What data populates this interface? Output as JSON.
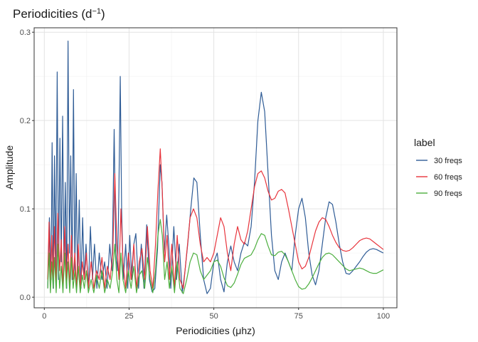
{
  "chart_data": {
    "type": "line",
    "title": "Periodicities (d",
    "title_superscript": "−1",
    "title_suffix": ")",
    "xlabel": "Periodicities (μhz)",
    "ylabel": "Amplitude",
    "xlim": [
      -3,
      104
    ],
    "ylim": [
      -0.012,
      0.305
    ],
    "x_ticks": [
      0,
      25,
      50,
      75,
      100
    ],
    "x_tick_labels": [
      "0",
      "25",
      "50",
      "75",
      "100"
    ],
    "y_ticks": [
      0.0,
      0.1,
      0.2,
      0.3
    ],
    "y_tick_labels": [
      "0.0",
      "0.1",
      "0.2",
      "0.3"
    ],
    "grid": true,
    "legend": {
      "title": "label",
      "placement": "right",
      "entries": [
        "30  freqs",
        "60  freqs",
        "90  freqs"
      ]
    },
    "series": [
      {
        "name": "30  freqs",
        "color": "#2f5c96",
        "x": [
          1.0,
          1.5,
          2.0,
          2.3,
          2.7,
          3.0,
          3.4,
          3.8,
          4.2,
          4.6,
          5.0,
          5.4,
          5.8,
          6.2,
          6.6,
          7.0,
          7.4,
          7.8,
          8.2,
          8.6,
          9.0,
          9.4,
          9.8,
          10.3,
          10.8,
          11.3,
          11.8,
          12.3,
          13.0,
          13.6,
          14.2,
          14.8,
          15.5,
          16.2,
          17.0,
          17.8,
          18.5,
          19.3,
          20.0,
          20.6,
          21.1,
          21.6,
          22.0,
          22.4,
          22.8,
          23.3,
          24.0,
          24.6,
          25.2,
          25.8,
          26.4,
          27.0,
          27.8,
          28.6,
          29.4,
          30.2,
          31.0,
          31.8,
          32.6,
          33.4,
          34.2,
          34.7,
          35.4,
          36.1,
          36.7,
          37.3,
          38.2,
          39.0,
          39.8,
          40.7,
          41.5,
          42.3,
          43.2,
          44.1,
          45.0,
          46.0,
          47.0,
          48.0,
          49.0,
          50.0,
          51.0,
          52.0,
          53.0,
          54.0,
          55.0,
          56.0,
          57.0,
          58.0,
          59.0,
          60.0,
          61.0,
          62.0,
          63.0,
          64.0,
          65.0,
          66.0,
          67.0,
          68.0,
          69.0,
          70.0,
          71.0,
          72.0,
          73.0,
          74.0,
          75.0,
          76.0,
          77.0,
          78.0,
          79.0,
          80.0,
          81.0,
          82.0,
          83.0,
          84.0,
          85.0,
          86.0,
          87.0,
          88.0,
          89.0,
          90.0,
          91.0,
          92.0,
          93.0,
          94.0,
          95.0,
          96.0,
          97.0,
          98.0,
          99.0,
          100.0
        ],
        "y": [
          0.01,
          0.09,
          0.02,
          0.175,
          0.01,
          0.16,
          0.03,
          0.255,
          0.02,
          0.18,
          0.04,
          0.205,
          0.03,
          0.13,
          0.01,
          0.29,
          0.05,
          0.16,
          0.02,
          0.235,
          0.03,
          0.14,
          0.02,
          0.11,
          0.01,
          0.09,
          0.02,
          0.06,
          0.01,
          0.08,
          0.02,
          0.06,
          0.01,
          0.05,
          0.02,
          0.04,
          0.01,
          0.06,
          0.03,
          0.19,
          0.05,
          0.03,
          0.12,
          0.25,
          0.1,
          0.02,
          0.06,
          0.01,
          0.07,
          0.02,
          0.06,
          0.072,
          0.01,
          0.06,
          0.01,
          0.082,
          0.02,
          0.006,
          0.01,
          0.055,
          0.15,
          0.13,
          0.05,
          0.093,
          0.06,
          0.01,
          0.08,
          0.02,
          0.06,
          0.005,
          0.03,
          0.06,
          0.1,
          0.135,
          0.13,
          0.07,
          0.02,
          0.004,
          0.01,
          0.04,
          0.05,
          0.02,
          0.006,
          0.04,
          0.058,
          0.04,
          0.03,
          0.05,
          0.062,
          0.058,
          0.08,
          0.13,
          0.2,
          0.232,
          0.21,
          0.14,
          0.07,
          0.03,
          0.02,
          0.04,
          0.05,
          0.04,
          0.03,
          0.07,
          0.1,
          0.112,
          0.09,
          0.05,
          0.025,
          0.014,
          0.03,
          0.06,
          0.09,
          0.108,
          0.105,
          0.085,
          0.06,
          0.04,
          0.027,
          0.026,
          0.03,
          0.035,
          0.04,
          0.046,
          0.051,
          0.054,
          0.055,
          0.054,
          0.052,
          0.05
        ]
      },
      {
        "name": "60  freqs",
        "color": "#e8343c",
        "x": [
          1.0,
          1.4,
          1.8,
          2.2,
          2.6,
          3.0,
          3.5,
          4.0,
          4.5,
          5.0,
          5.5,
          6.0,
          6.5,
          7.0,
          7.5,
          8.0,
          8.5,
          9.0,
          9.5,
          10.0,
          10.6,
          11.2,
          11.8,
          12.4,
          13.0,
          13.8,
          14.6,
          15.4,
          16.2,
          17.0,
          17.8,
          18.6,
          19.4,
          20.2,
          20.8,
          21.4,
          22.0,
          22.6,
          23.2,
          24.0,
          24.8,
          25.6,
          26.4,
          27.2,
          28.0,
          28.8,
          29.6,
          30.4,
          31.2,
          32.0,
          32.8,
          33.5,
          34.2,
          34.8,
          35.5,
          36.2,
          36.9,
          37.6,
          38.4,
          39.2,
          40.0,
          41.0,
          42.0,
          43.0,
          44.0,
          45.0,
          46.0,
          47.0,
          48.0,
          49.0,
          50.0,
          51.0,
          52.0,
          53.0,
          54.0,
          55.0,
          56.0,
          57.0,
          58.0,
          59.0,
          60.0,
          61.0,
          62.0,
          63.0,
          64.0,
          65.0,
          66.0,
          67.0,
          68.0,
          69.0,
          70.0,
          71.0,
          72.0,
          73.0,
          74.0,
          75.0,
          76.0,
          77.0,
          78.0,
          79.0,
          80.0,
          81.0,
          82.0,
          83.0,
          84.0,
          85.0,
          86.0,
          87.0,
          88.0,
          89.0,
          90.0,
          91.0,
          92.0,
          93.0,
          94.0,
          95.0,
          96.0,
          97.0,
          98.0,
          99.0,
          100.0
        ],
        "y": [
          0.02,
          0.085,
          0.01,
          0.07,
          0.02,
          0.08,
          0.01,
          0.095,
          0.03,
          0.065,
          0.01,
          0.08,
          0.02,
          0.06,
          0.01,
          0.07,
          0.02,
          0.05,
          0.01,
          0.06,
          0.01,
          0.04,
          0.02,
          0.05,
          0.01,
          0.04,
          0.01,
          0.03,
          0.02,
          0.045,
          0.01,
          0.035,
          0.02,
          0.05,
          0.14,
          0.06,
          0.02,
          0.1,
          0.04,
          0.01,
          0.05,
          0.02,
          0.06,
          0.01,
          0.04,
          0.055,
          0.02,
          0.08,
          0.03,
          0.01,
          0.06,
          0.12,
          0.168,
          0.12,
          0.04,
          0.07,
          0.02,
          0.06,
          0.01,
          0.07,
          0.02,
          0.01,
          0.05,
          0.09,
          0.1,
          0.09,
          0.06,
          0.04,
          0.045,
          0.04,
          0.05,
          0.07,
          0.09,
          0.08,
          0.05,
          0.03,
          0.06,
          0.08,
          0.065,
          0.06,
          0.075,
          0.1,
          0.125,
          0.14,
          0.143,
          0.135,
          0.12,
          0.11,
          0.112,
          0.12,
          0.122,
          0.118,
          0.1,
          0.08,
          0.06,
          0.04,
          0.032,
          0.035,
          0.045,
          0.06,
          0.075,
          0.085,
          0.09,
          0.088,
          0.08,
          0.07,
          0.062,
          0.056,
          0.053,
          0.052,
          0.053,
          0.056,
          0.06,
          0.064,
          0.066,
          0.067,
          0.066,
          0.063,
          0.06,
          0.057,
          0.054
        ]
      },
      {
        "name": "90  freqs",
        "color": "#4caf3e",
        "x": [
          1.0,
          1.4,
          1.8,
          2.2,
          2.6,
          3.0,
          3.5,
          4.0,
          4.5,
          5.0,
          5.5,
          6.0,
          6.5,
          7.0,
          7.5,
          8.0,
          8.5,
          9.0,
          9.5,
          10.0,
          10.6,
          11.2,
          11.8,
          12.4,
          13.0,
          13.8,
          14.6,
          15.4,
          16.2,
          17.0,
          17.8,
          18.6,
          19.4,
          20.2,
          20.8,
          21.4,
          22.0,
          22.6,
          23.2,
          24.0,
          24.8,
          25.6,
          26.4,
          27.2,
          28.0,
          28.8,
          29.6,
          30.4,
          31.2,
          32.0,
          32.8,
          33.5,
          34.2,
          34.8,
          35.5,
          36.2,
          36.9,
          37.6,
          38.4,
          39.2,
          40.0,
          41.0,
          42.0,
          43.0,
          44.0,
          45.0,
          46.0,
          47.0,
          48.0,
          49.0,
          50.0,
          51.0,
          52.0,
          53.0,
          54.0,
          55.0,
          56.0,
          57.0,
          58.0,
          59.0,
          60.0,
          61.0,
          62.0,
          63.0,
          64.0,
          65.0,
          66.0,
          67.0,
          68.0,
          69.0,
          70.0,
          71.0,
          72.0,
          73.0,
          74.0,
          75.0,
          76.0,
          77.0,
          78.0,
          79.0,
          80.0,
          81.0,
          82.0,
          83.0,
          84.0,
          85.0,
          86.0,
          87.0,
          88.0,
          89.0,
          90.0,
          91.0,
          92.0,
          93.0,
          94.0,
          95.0,
          96.0,
          97.0,
          98.0,
          99.0,
          100.0
        ],
        "y": [
          0.01,
          0.05,
          0.005,
          0.04,
          0.01,
          0.045,
          0.005,
          0.06,
          0.01,
          0.035,
          0.005,
          0.05,
          0.01,
          0.04,
          0.005,
          0.045,
          0.01,
          0.03,
          0.005,
          0.035,
          0.005,
          0.025,
          0.01,
          0.03,
          0.005,
          0.02,
          0.005,
          0.025,
          0.01,
          0.03,
          0.005,
          0.02,
          0.01,
          0.03,
          0.06,
          0.02,
          0.005,
          0.05,
          0.02,
          0.005,
          0.03,
          0.01,
          0.035,
          0.005,
          0.025,
          0.03,
          0.01,
          0.045,
          0.02,
          0.005,
          0.03,
          0.07,
          0.088,
          0.07,
          0.02,
          0.04,
          0.01,
          0.035,
          0.005,
          0.04,
          0.01,
          0.004,
          0.02,
          0.04,
          0.05,
          0.048,
          0.03,
          0.02,
          0.025,
          0.03,
          0.04,
          0.042,
          0.035,
          0.022,
          0.013,
          0.011,
          0.016,
          0.026,
          0.037,
          0.044,
          0.046,
          0.048,
          0.055,
          0.065,
          0.072,
          0.07,
          0.058,
          0.048,
          0.047,
          0.051,
          0.052,
          0.048,
          0.04,
          0.03,
          0.02,
          0.012,
          0.009,
          0.01,
          0.015,
          0.022,
          0.03,
          0.038,
          0.045,
          0.049,
          0.05,
          0.048,
          0.044,
          0.04,
          0.036,
          0.032,
          0.03,
          0.031,
          0.032,
          0.033,
          0.032,
          0.03,
          0.028,
          0.027,
          0.027,
          0.029,
          0.031
        ]
      }
    ]
  }
}
